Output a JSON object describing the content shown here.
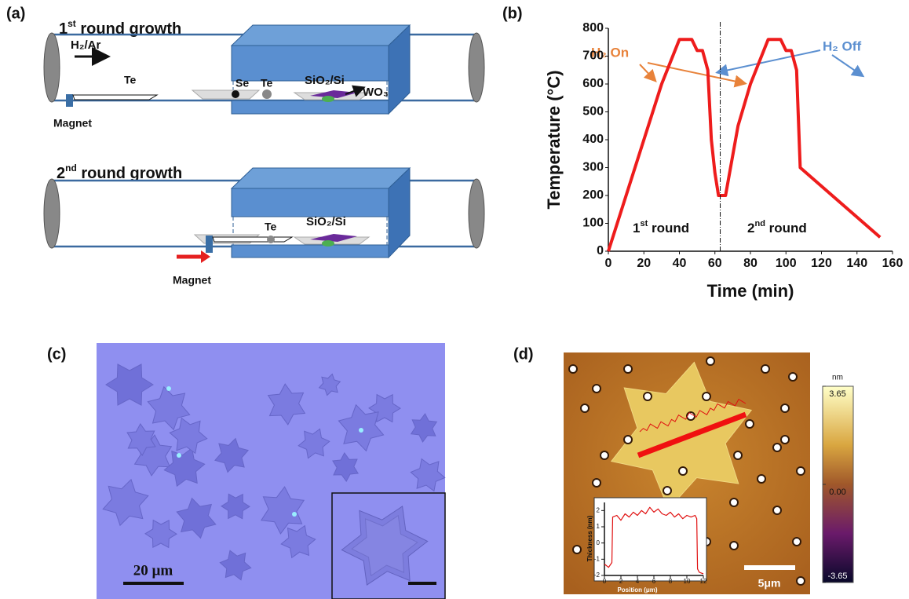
{
  "panel_a": {
    "label": "(a)",
    "round1_title": {
      "base": "1",
      "sup": "st",
      "rest": " round growth"
    },
    "gas": "H₂/Ar",
    "te_boat": "Te",
    "se": "Se",
    "te": "Te",
    "substrate": "SiO₂/Si",
    "wo3": "WO₃",
    "magnet": "Magnet",
    "round2_title": {
      "base": "2",
      "sup": "nd",
      "rest": " round growth"
    },
    "te2": "Te",
    "substrate2": "SiO₂/Si",
    "magnet2": "Magnet"
  },
  "panel_b": {
    "label": "(b)"
  },
  "panel_c": {
    "label": "(c)",
    "scale_bar": "20 µm"
  },
  "panel_d": {
    "label": "(d)",
    "scale_bar": "5μm",
    "colorbar": {
      "unit": "nm",
      "ticks": [
        3.65,
        {
          "value": 0,
          "label": "0.00"
        },
        -3.65
      ]
    }
  },
  "chart_data": [
    {
      "type": "line",
      "xlabel": "Time (min)",
      "ylabel": "Temperature (°C)",
      "color": "#ee1c1c",
      "x": [
        0,
        30,
        40,
        47,
        50,
        53,
        56,
        58,
        60,
        62,
        66,
        73,
        80,
        90,
        97,
        100,
        103,
        106,
        108,
        153
      ],
      "values": [
        0,
        600,
        760,
        760,
        720,
        720,
        650,
        400,
        280,
        200,
        200,
        450,
        600,
        760,
        760,
        720,
        720,
        650,
        300,
        50
      ],
      "xlim": [
        0,
        160
      ],
      "xticks": [
        0,
        20,
        40,
        60,
        80,
        100,
        120,
        140,
        160
      ],
      "ylim": [
        0,
        800
      ],
      "yticks": [
        0,
        100,
        200,
        300,
        400,
        500,
        600,
        700,
        800
      ],
      "divider_x": 63,
      "annotations": {
        "h2_on": "H₂ On",
        "h2_off": "H₂ Off",
        "round1": {
          "base": "1",
          "sup": "st",
          "rest": " round"
        },
        "round2": {
          "base": "2",
          "sup": "nd",
          "rest": " round"
        }
      }
    },
    {
      "type": "line",
      "xlabel": "Position (μm)",
      "ylabel": "Thickness (nm)",
      "color": "#e01010",
      "x": [
        0,
        0.5,
        0.9,
        1.0,
        1.5,
        2,
        2.5,
        3,
        3.5,
        4,
        4.5,
        5,
        5.5,
        6,
        6.5,
        7,
        7.5,
        8,
        8.5,
        9,
        9.5,
        10,
        10.5,
        11,
        11.2,
        11.3,
        11.5,
        12
      ],
      "values": [
        -1.3,
        -1.5,
        -1.2,
        1.6,
        1.7,
        1.4,
        1.8,
        1.6,
        1.9,
        1.7,
        2.0,
        1.8,
        2.2,
        1.9,
        2.1,
        1.8,
        1.7,
        1.9,
        1.6,
        1.8,
        1.5,
        1.7,
        1.6,
        1.7,
        1.5,
        -1.6,
        -1.8,
        -1.9
      ],
      "xlim": [
        0,
        12
      ],
      "xticks": [
        0,
        2,
        4,
        6,
        8,
        10,
        12
      ],
      "ylim": [
        -2,
        2.5
      ],
      "yticks": [
        -2,
        -1,
        0,
        1,
        2
      ]
    }
  ]
}
